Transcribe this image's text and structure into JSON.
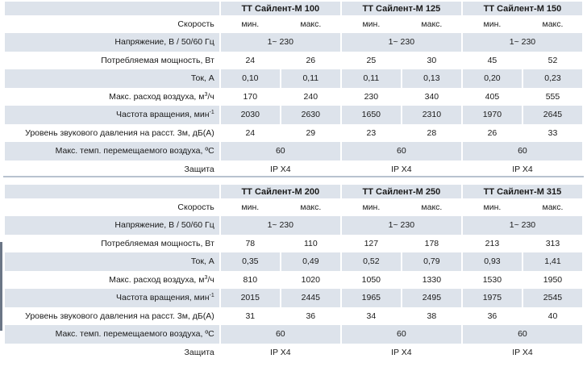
{
  "row_labels": {
    "speed": "Скорость",
    "voltage": "Напряжение, В / 50/60 Гц",
    "power": "Потребляемая мощность, Вт",
    "current": "Ток, А",
    "airflow": "Макс. расход воздуха, м",
    "airflow_sup": "3",
    "airflow_unit": "/ч",
    "rpm": "Частота вращения, мин",
    "rpm_sup": "-1",
    "noise": "Уровень звукового давления на расст. 3м, дБ(А)",
    "temp": "Макс. темп. перемещаемого воздуха, ºС",
    "protection": "Защита"
  },
  "speed_labels": {
    "min": "мин.",
    "max": "макс."
  },
  "tables": [
    {
      "models": [
        "ТТ Сайлент-М 100",
        "ТТ Сайлент-М 125",
        "ТТ Сайлент-М 150"
      ],
      "voltage": [
        "1~ 230",
        "1~ 230",
        "1~ 230"
      ],
      "power": [
        [
          "24",
          "26"
        ],
        [
          "25",
          "30"
        ],
        [
          "45",
          "52"
        ]
      ],
      "current": [
        [
          "0,10",
          "0,11"
        ],
        [
          "0,11",
          "0,13"
        ],
        [
          "0,20",
          "0,23"
        ]
      ],
      "airflow": [
        [
          "170",
          "240"
        ],
        [
          "230",
          "340"
        ],
        [
          "405",
          "555"
        ]
      ],
      "rpm": [
        [
          "2030",
          "2630"
        ],
        [
          "1650",
          "2310"
        ],
        [
          "1970",
          "2645"
        ]
      ],
      "noise": [
        [
          "24",
          "29"
        ],
        [
          "23",
          "28"
        ],
        [
          "26",
          "33"
        ]
      ],
      "temp": [
        "60",
        "60",
        "60"
      ],
      "protection": [
        "IP X4",
        "IP X4",
        "IP X4"
      ]
    },
    {
      "models": [
        "ТТ Сайлент-М 200",
        "ТТ Сайлент-М 250",
        "ТТ Сайлент-М 315"
      ],
      "voltage": [
        "1~ 230",
        "1~ 230",
        "1~ 230"
      ],
      "power": [
        [
          "78",
          "110"
        ],
        [
          "127",
          "178"
        ],
        [
          "213",
          "313"
        ]
      ],
      "current": [
        [
          "0,35",
          "0,49"
        ],
        [
          "0,52",
          "0,79"
        ],
        [
          "0,93",
          "1,41"
        ]
      ],
      "airflow": [
        [
          "810",
          "1020"
        ],
        [
          "1050",
          "1330"
        ],
        [
          "1530",
          "1950"
        ]
      ],
      "rpm": [
        [
          "2015",
          "2445"
        ],
        [
          "1965",
          "2495"
        ],
        [
          "1975",
          "2545"
        ]
      ],
      "noise": [
        [
          "31",
          "36"
        ],
        [
          "34",
          "38"
        ],
        [
          "36",
          "40"
        ]
      ],
      "temp": [
        "60",
        "60",
        "60"
      ],
      "protection": [
        "IP X4",
        "IP X4",
        "IP X4"
      ]
    }
  ]
}
